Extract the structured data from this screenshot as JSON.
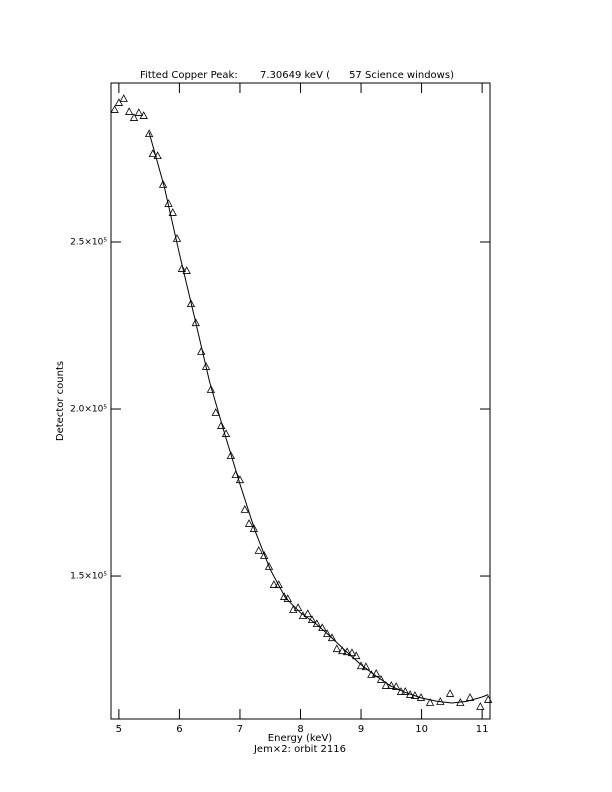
{
  "chart_data": {
    "type": "scatter",
    "title": "Fitted Copper Peak:       7.30649 keV (      57 Science windows)",
    "x_label": "Energy (keV)",
    "subtitle": "Jem×2: orbit 2116",
    "y_label": "Detector counts",
    "xlim": [
      4.87,
      11.13
    ],
    "ylim": [
      107200,
      297600
    ],
    "xticks": [
      5,
      6,
      7,
      8,
      9,
      10,
      11
    ],
    "yticks": [
      {
        "value": 150000,
        "label": "1.5×10⁵"
      },
      {
        "value": 200000,
        "label": "2.0×10⁵"
      },
      {
        "value": 250000,
        "label": "2.5×10⁵"
      }
    ],
    "color": "#000000",
    "series": [
      {
        "mode": "markers",
        "x": [
          4.93,
          5.0,
          5.08,
          5.17,
          5.25,
          5.33,
          5.41,
          5.5,
          5.56,
          5.64,
          5.73,
          5.82,
          5.89,
          5.96,
          6.04,
          6.12,
          6.19,
          6.27,
          6.36,
          6.44,
          6.52,
          6.6,
          6.69,
          6.77,
          6.85,
          6.93,
          7.0,
          7.08,
          7.15,
          7.23,
          7.31,
          7.4,
          7.48,
          7.56,
          7.64,
          7.73,
          7.79,
          7.88,
          7.96,
          8.04,
          8.12,
          8.19,
          8.27,
          8.36,
          8.44,
          8.52,
          8.6,
          8.69,
          8.77,
          8.85,
          8.92,
          9.0,
          9.08,
          9.17,
          9.25,
          9.33,
          9.41,
          9.5,
          9.58,
          9.66,
          9.73,
          9.81,
          9.89,
          9.99,
          10.14,
          10.31,
          10.47,
          10.64,
          10.8,
          10.97,
          11.1
        ],
        "values": [
          289500,
          291600,
          292800,
          288900,
          287100,
          288600,
          287700,
          282300,
          276300,
          275700,
          267100,
          261400,
          258700,
          250900,
          241900,
          241300,
          231400,
          225700,
          217100,
          212600,
          205700,
          198800,
          194900,
          192500,
          185900,
          180200,
          178700,
          169800,
          165600,
          164100,
          157500,
          156000,
          152700,
          147300,
          147300,
          143700,
          143100,
          139800,
          140400,
          138000,
          138600,
          136800,
          135600,
          134400,
          132600,
          131400,
          128100,
          127500,
          127200,
          126900,
          126000,
          123000,
          122700,
          120400,
          120700,
          118900,
          117100,
          117100,
          116800,
          115300,
          115300,
          114400,
          114100,
          113500,
          112000,
          112300,
          114700,
          112000,
          113500,
          110800,
          112900
        ]
      },
      {
        "mode": "line",
        "x": [
          5.5,
          5.75,
          6.0,
          6.25,
          6.5,
          6.75,
          7.0,
          7.25,
          7.5,
          7.75,
          8.0,
          8.25,
          8.5,
          8.75,
          9.0,
          9.25,
          9.5,
          9.75,
          10.0,
          10.25,
          10.5,
          10.75,
          11.0,
          11.1
        ],
        "values": [
          282800,
          266500,
          246500,
          227500,
          208000,
          192500,
          177500,
          163500,
          152000,
          143500,
          139000,
          135800,
          131800,
          127500,
          123500,
          120000,
          117000,
          115000,
          113500,
          112500,
          112000,
          112500,
          113800,
          114500
        ]
      }
    ]
  }
}
